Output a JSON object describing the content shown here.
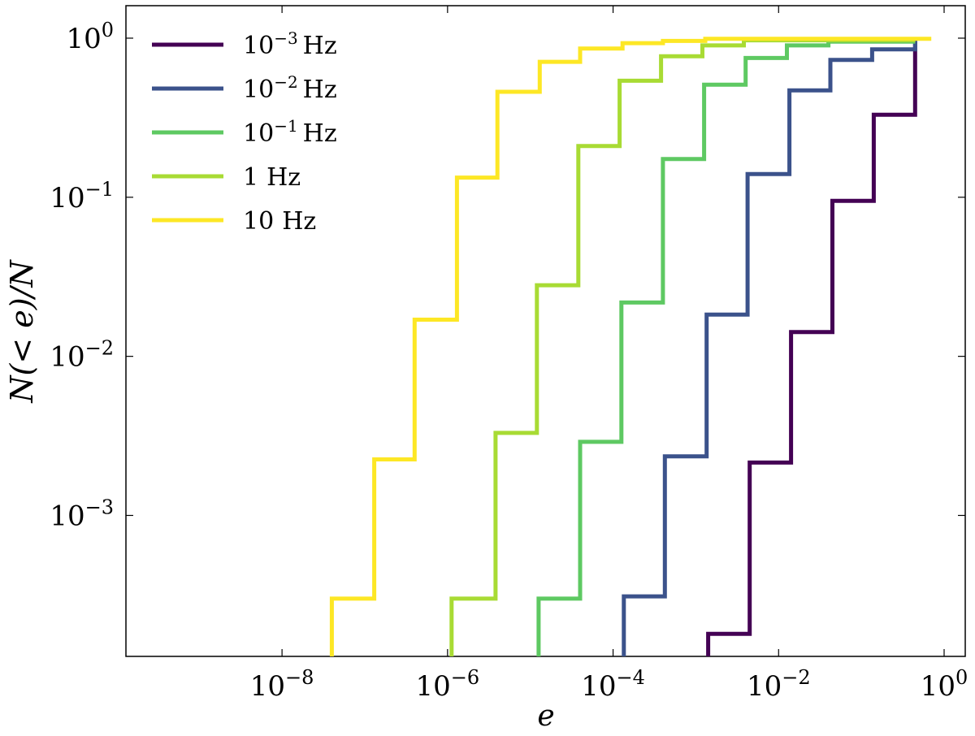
{
  "chart_data": {
    "type": "line",
    "step": true,
    "title": "",
    "xlabel": "e",
    "ylabel": "N(< e)/N",
    "xscale": "log",
    "yscale": "log",
    "xlim": [
      1.3e-10,
      1.8
    ],
    "ylim": [
      0.00013,
      1.6
    ],
    "x_ticks": [
      {
        "value": 1e-08,
        "base": "10",
        "exp": "−8"
      },
      {
        "value": 1e-06,
        "base": "10",
        "exp": "−6"
      },
      {
        "value": 0.0001,
        "base": "10",
        "exp": "−4"
      },
      {
        "value": 0.01,
        "base": "10",
        "exp": "−2"
      },
      {
        "value": 1,
        "base": "10",
        "exp": "0"
      }
    ],
    "y_ticks": [
      {
        "value": 0.001,
        "base": "10",
        "exp": "−3"
      },
      {
        "value": 0.01,
        "base": "10",
        "exp": "−2"
      },
      {
        "value": 0.1,
        "base": "10",
        "exp": "−1"
      },
      {
        "value": 1,
        "base": "10",
        "exp": "0"
      }
    ],
    "grid": false,
    "legend_position": "top-left",
    "series": [
      {
        "name": "10",
        "name_exp": "−3",
        "name_unit": "Hz",
        "color": "#440154",
        "x": [
          0.00141,
          0.00141,
          0.00447,
          0.00447,
          0.01413,
          0.01413,
          0.04467,
          0.04467,
          0.1413,
          0.1413,
          0.4467,
          0.4467
        ],
        "y": [
          0.00013,
          0.00018,
          0.00018,
          0.00215,
          0.00215,
          0.0142,
          0.0142,
          0.095,
          0.095,
          0.33,
          0.33,
          1.0
        ]
      },
      {
        "name": "10",
        "name_exp": "−2",
        "name_unit": "Hz",
        "color": "#3b528b",
        "x": [
          0.000135,
          0.000135,
          0.000422,
          0.000422,
          0.00135,
          0.00135,
          0.00422,
          0.00422,
          0.0135,
          0.0135,
          0.0422,
          0.0422,
          0.135,
          0.135,
          0.447,
          0.447
        ],
        "y": [
          0.00013,
          0.00031,
          0.00031,
          0.00235,
          0.00235,
          0.0183,
          0.0183,
          0.14,
          0.14,
          0.47,
          0.47,
          0.73,
          0.73,
          0.85,
          0.85,
          1.0
        ]
      },
      {
        "name": "10",
        "name_exp": "−1",
        "name_unit": "Hz",
        "color": "#5ec962",
        "x": [
          1.26e-05,
          1.26e-05,
          4e-05,
          4e-05,
          0.000126,
          0.000126,
          0.0004,
          0.0004,
          0.00126,
          0.00126,
          0.004,
          0.004,
          0.0126,
          0.0126,
          0.04,
          0.04,
          0.447
        ],
        "y": [
          0.00013,
          0.0003,
          0.0003,
          0.0029,
          0.0029,
          0.0218,
          0.0218,
          0.174,
          0.174,
          0.51,
          0.51,
          0.75,
          0.75,
          0.9,
          0.9,
          0.95,
          0.95
        ]
      },
      {
        "name": "1",
        "name_exp": "",
        "name_unit": "Hz",
        "color": "#a8db34",
        "x": [
          1.12e-06,
          1.12e-06,
          3.8e-06,
          3.8e-06,
          1.2e-05,
          1.2e-05,
          3.8e-05,
          3.8e-05,
          0.00012,
          0.00012,
          0.00038,
          0.00038,
          0.0012,
          0.0012,
          0.0038,
          0.0038,
          0.447
        ],
        "y": [
          0.00013,
          0.0003,
          0.0003,
          0.0033,
          0.0033,
          0.028,
          0.028,
          0.21,
          0.21,
          0.54,
          0.54,
          0.77,
          0.77,
          0.9,
          0.9,
          0.97,
          0.97
        ]
      },
      {
        "name": "10",
        "name_exp": "",
        "name_unit": "Hz",
        "color": "#fde725",
        "x": [
          4e-08,
          4e-08,
          1.3e-07,
          1.3e-07,
          4e-07,
          4e-07,
          1.3e-06,
          1.3e-06,
          4e-06,
          4e-06,
          1.3e-05,
          1.3e-05,
          4e-05,
          4e-05,
          0.00013,
          0.00013,
          0.0004,
          0.0004,
          0.0013,
          0.0013,
          0.7
        ],
        "y": [
          0.00013,
          0.0003,
          0.0003,
          0.00225,
          0.00225,
          0.017,
          0.017,
          0.133,
          0.133,
          0.46,
          0.46,
          0.71,
          0.71,
          0.86,
          0.86,
          0.93,
          0.93,
          0.96,
          0.96,
          0.99,
          0.99
        ]
      }
    ]
  }
}
